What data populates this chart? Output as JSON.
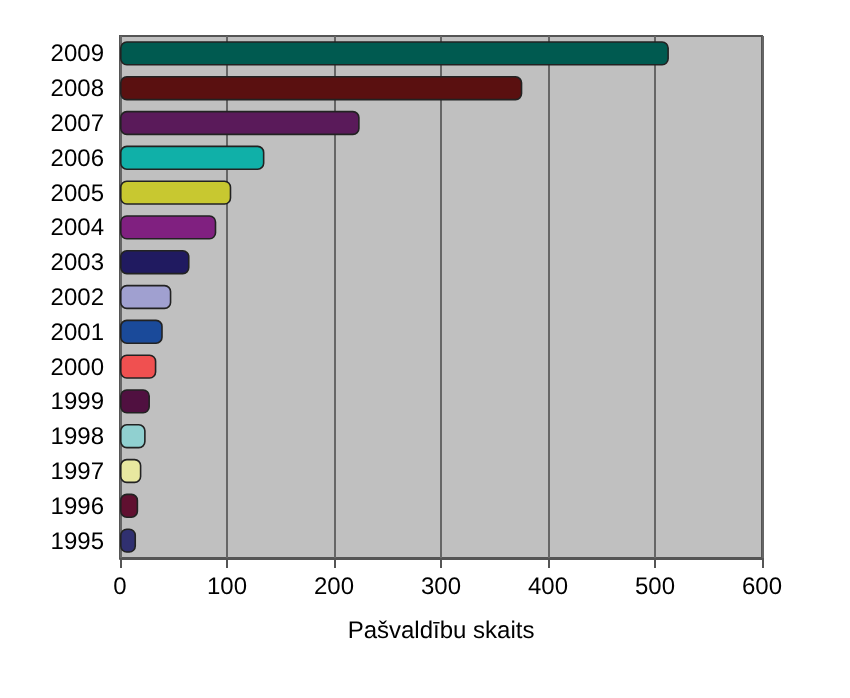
{
  "chart_data": {
    "type": "bar",
    "orientation": "horizontal",
    "xlabel": "Pašvaldību skaits",
    "categories": [
      "2009",
      "2008",
      "2007",
      "2006",
      "2005",
      "2004",
      "2003",
      "2002",
      "2001",
      "2000",
      "1999",
      "1998",
      "1997",
      "1996",
      "1995"
    ],
    "values": [
      513,
      376,
      224,
      135,
      104,
      90,
      65,
      48,
      40,
      34,
      28,
      24,
      20,
      17,
      15
    ],
    "colors": [
      "#005a50",
      "#5a1010",
      "#5a1a5a",
      "#10b0a8",
      "#c8c830",
      "#802080",
      "#201a60",
      "#a0a0d0",
      "#1a4a9a",
      "#f05050",
      "#501040",
      "#90d0d0",
      "#e8e8a0",
      "#601030",
      "#303070"
    ],
    "xlim": [
      0,
      600
    ],
    "xticks": [
      0,
      100,
      200,
      300,
      400,
      500,
      600
    ],
    "grid": "x"
  }
}
